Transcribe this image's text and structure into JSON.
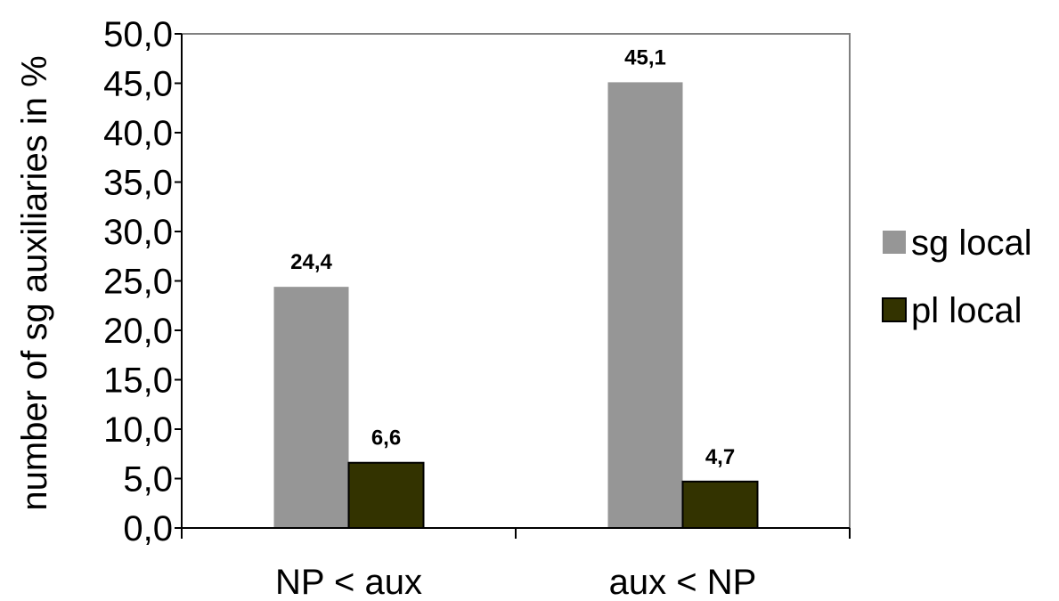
{
  "chart_data": {
    "type": "bar",
    "categories": [
      "NP < aux",
      "aux < NP"
    ],
    "series": [
      {
        "name": "sg local",
        "values": [
          24.4,
          45.1
        ],
        "labels": [
          "24,4",
          "45,1"
        ],
        "color": "#969696"
      },
      {
        "name": "pl local",
        "values": [
          6.6,
          4.7
        ],
        "labels": [
          "6,6",
          "4,7"
        ],
        "color": "#333300"
      }
    ],
    "title": "",
    "xlabel": "",
    "ylabel": "number of sg auxiliaries in %",
    "ylim": [
      0,
      50
    ],
    "yticks": [
      "0,0",
      "5,0",
      "10,0",
      "15,0",
      "20,0",
      "25,0",
      "30,0",
      "35,0",
      "40,0",
      "45,0",
      "50,0"
    ],
    "ytick_values": [
      0,
      5,
      10,
      15,
      20,
      25,
      30,
      35,
      40,
      45,
      50
    ],
    "grid": false,
    "legend": "right",
    "frame_color": "#808080",
    "axis_color": "#000000"
  }
}
